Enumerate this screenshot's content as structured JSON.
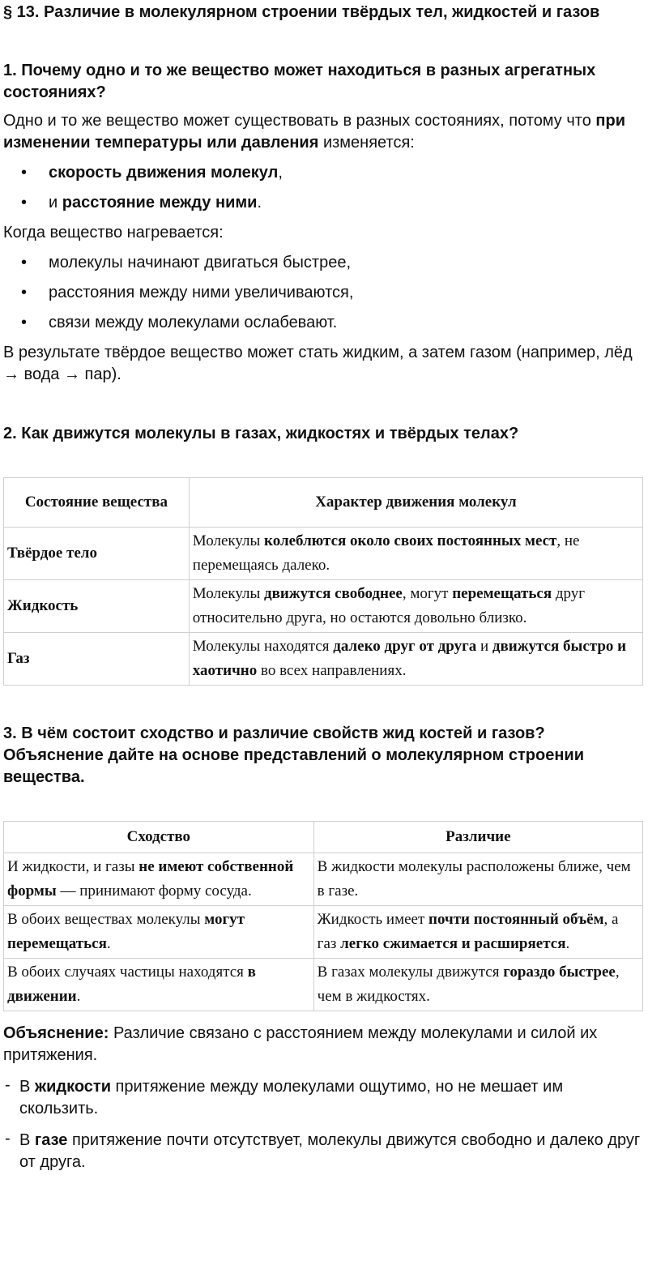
{
  "title": "§ 13. Различие в молекулярном строении твёрдых тел, жидкостей и газов",
  "sections": [
    {
      "heading": "1. Почему одно и то же вещество может находиться в разных агрегатных состояниях?",
      "blocks": [
        {
          "kind": "p",
          "runs": [
            "Одно и то же вещество может существовать в разных состояниях, потому что ",
            {
              "text": "при изменении температуры или давления",
              "bold": true
            },
            " изменяется:"
          ]
        },
        {
          "kind": "ul",
          "items": [
            [
              {
                "text": "скорость движения молекул",
                "bold": true
              },
              ","
            ],
            [
              "и ",
              {
                "text": "расстояние между ними",
                "bold": true
              },
              "."
            ]
          ]
        },
        {
          "kind": "p",
          "runs": [
            "Когда вещество нагревается:"
          ]
        },
        {
          "kind": "ul",
          "items": [
            [
              "молекулы начинают двигаться быстрее,"
            ],
            [
              "расстояния между ними увеличиваются,"
            ],
            [
              "связи между молекулами ослабевают."
            ]
          ]
        },
        {
          "kind": "p",
          "runs": [
            "В результате твёрдое вещество может стать жидким, а затем газом (например, лёд → вода → пар)."
          ]
        }
      ]
    },
    {
      "heading": "2. Как движутся молекулы в газах, жидкостях и твёрдых телах?",
      "blocks": [
        {
          "kind": "table",
          "header": [
            [
              "Состояние вещества"
            ],
            [
              "Характер движения молекул"
            ]
          ],
          "rows": [
            [
              [
                {
                  "text": "Твёрдое тело",
                  "bold": true
                }
              ],
              [
                "Молекулы ",
                {
                  "text": "колеблются около своих постоянных мест",
                  "bold": true
                },
                ", не перемещаясь далеко."
              ]
            ],
            [
              [
                {
                  "text": "Жидкость",
                  "bold": true
                }
              ],
              [
                "Молекулы ",
                {
                  "text": "движутся свободнее",
                  "bold": true
                },
                ", могут ",
                {
                  "text": "перемещаться",
                  "bold": true
                },
                " друг относительно друга, но остаются довольно близко."
              ]
            ],
            [
              [
                {
                  "text": "Газ",
                  "bold": true
                }
              ],
              [
                "Молекулы находятся ",
                {
                  "text": "далеко друг от друга",
                  "bold": true
                },
                " и ",
                {
                  "text": "движутся быстро и хаотично",
                  "bold": true
                },
                " во всех направлениях."
              ]
            ]
          ]
        }
      ]
    },
    {
      "heading": "3. В чём состоит сходство и различие свойств жид костей и газов? Объяснение дайте на основе представлений о молекулярном строении вещества.",
      "blocks": [
        {
          "kind": "table",
          "header": [
            [
              "Сходство"
            ],
            [
              "Различие"
            ]
          ],
          "rows": [
            [
              [
                "И жидкости, и газы ",
                {
                  "text": "не имеют собственной формы",
                  "bold": true
                },
                " — принимают форму сосуда."
              ],
              [
                "В жидкости молекулы расположены ближе, чем в газе."
              ]
            ],
            [
              [
                "В обоих веществах молекулы ",
                {
                  "text": "могут перемещаться",
                  "bold": true
                },
                "."
              ],
              [
                "Жидкость имеет ",
                {
                  "text": "почти постоянный объём",
                  "bold": true
                },
                ", а газ ",
                {
                  "text": "легко сжимается и расширяется",
                  "bold": true
                },
                "."
              ]
            ],
            [
              [
                "В обоих случаях частицы находятся ",
                {
                  "text": "в движении",
                  "bold": true
                },
                "."
              ],
              [
                "В газах молекулы движутся ",
                {
                  "text": "гораздо быстрее",
                  "bold": true
                },
                ", чем в жидкостях."
              ]
            ]
          ]
        },
        {
          "kind": "p",
          "runs": [
            {
              "text": "Объяснение:",
              "bold": true
            },
            " Различие связано с расстоянием между молекулами и силой их притяжения."
          ]
        },
        {
          "kind": "dash",
          "items": [
            [
              "В ",
              {
                "text": "жидкости",
                "bold": true
              },
              " притяжение между молекулами ощутимо, но не мешает им скользить."
            ],
            [
              "В ",
              {
                "text": "газе",
                "bold": true
              },
              " притяжение почти отсутствует, молекулы движутся свободно и далеко друг от друга."
            ]
          ]
        }
      ]
    }
  ]
}
